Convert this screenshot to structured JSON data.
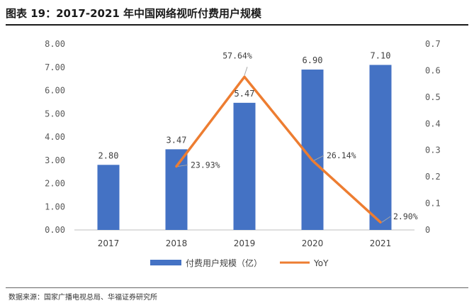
{
  "page": {
    "title": "图表 19：2017-2021 年中国网络视听付费用户规模",
    "source": "数据来源：国家广播电视总局、华福证券研究所"
  },
  "chart_data": {
    "type": "bar+line",
    "categories": [
      "2017",
      "2018",
      "2019",
      "2020",
      "2021"
    ],
    "series": [
      {
        "name": "付费用户规模（亿）",
        "kind": "bar",
        "axis": "left",
        "color": "#4472C4",
        "values": [
          2.8,
          3.47,
          5.47,
          6.9,
          7.1
        ],
        "labels": [
          "2.80",
          "3.47",
          "5.47",
          "6.90",
          "7.10"
        ]
      },
      {
        "name": "YoY",
        "kind": "line",
        "axis": "right",
        "color": "#ED7D31",
        "values": [
          null,
          0.2393,
          0.5764,
          0.2614,
          0.029
        ],
        "labels": [
          null,
          "23.93%",
          "57.64%",
          "26.14%",
          "2.90%"
        ]
      }
    ],
    "y_left": {
      "min": 0,
      "max": 8,
      "step": 1,
      "tick_labels": [
        "0.00",
        "1.00",
        "2.00",
        "3.00",
        "4.00",
        "5.00",
        "6.00",
        "7.00",
        "8.00"
      ]
    },
    "y_right": {
      "min": 0,
      "max": 0.7,
      "step": 0.1,
      "tick_labels": [
        "0",
        "0.1",
        "0.2",
        "0.3",
        "0.4",
        "0.5",
        "0.6",
        "0.7"
      ]
    },
    "grid": false,
    "legend": "bottom"
  }
}
